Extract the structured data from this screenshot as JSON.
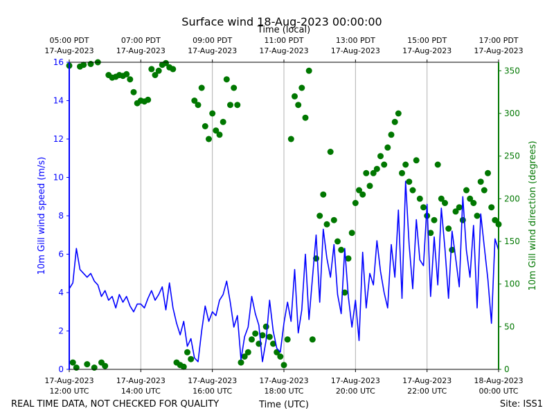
{
  "chart_data": {
    "type": "line+scatter",
    "title": "Surface wind 18-Aug-2023 00:00:00",
    "top_axis_label": "Time (local)",
    "xlabel": "Time (UTC)",
    "ylabel_left": "10m Gill wind speed (m/s)",
    "ylabel_right": "10m Gill wind direction (degrees)",
    "footer_left": "REAL TIME DATA, NOT CHECKED FOR QUALITY",
    "footer_right": "Site: ISS1",
    "x_range_hours_utc": [
      12,
      24
    ],
    "y_left_range": [
      0,
      16
    ],
    "y_right_range": [
      0,
      360
    ],
    "y_left_ticks": [
      0,
      2,
      4,
      6,
      8,
      10,
      12,
      14,
      16
    ],
    "y_right_ticks": [
      0,
      50,
      100,
      150,
      200,
      250,
      300,
      350
    ],
    "grid": "vertical",
    "colors": {
      "speed": "#0000ff",
      "direction": "#007700",
      "grid": "#b0b0b0",
      "axis": "#000000"
    },
    "bottom_ticks": [
      {
        "hour": 12,
        "line1": "17-Aug-2023",
        "line2": "12:00 UTC"
      },
      {
        "hour": 14,
        "line1": "17-Aug-2023",
        "line2": "14:00 UTC"
      },
      {
        "hour": 16,
        "line1": "17-Aug-2023",
        "line2": "16:00 UTC"
      },
      {
        "hour": 18,
        "line1": "17-Aug-2023",
        "line2": "18:00 UTC"
      },
      {
        "hour": 20,
        "line1": "17-Aug-2023",
        "line2": "20:00 UTC"
      },
      {
        "hour": 22,
        "line1": "17-Aug-2023",
        "line2": "22:00 UTC"
      },
      {
        "hour": 24,
        "line1": "18-Aug-2023",
        "line2": "00:00 UTC"
      }
    ],
    "top_ticks": [
      {
        "hour": 12,
        "line1": "05:00 PDT",
        "line2": "17-Aug-2023"
      },
      {
        "hour": 14,
        "line1": "07:00 PDT",
        "line2": "17-Aug-2023"
      },
      {
        "hour": 16,
        "line1": "09:00 PDT",
        "line2": "17-Aug-2023"
      },
      {
        "hour": 18,
        "line1": "11:00 PDT",
        "line2": "17-Aug-2023"
      },
      {
        "hour": 20,
        "line1": "13:00 PDT",
        "line2": "17-Aug-2023"
      },
      {
        "hour": 22,
        "line1": "15:00 PDT",
        "line2": "17-Aug-2023"
      },
      {
        "hour": 24,
        "line1": "17:00 PDT",
        "line2": "17-Aug-2023"
      }
    ],
    "series": [
      {
        "name": "wind speed",
        "axis": "left",
        "style": "line",
        "x": [
          12.0,
          12.1,
          12.2,
          12.3,
          12.4,
          12.5,
          12.6,
          12.7,
          12.8,
          12.9,
          13.0,
          13.1,
          13.2,
          13.3,
          13.4,
          13.5,
          13.6,
          13.7,
          13.8,
          13.9,
          14.0,
          14.1,
          14.2,
          14.3,
          14.4,
          14.5,
          14.6,
          14.7,
          14.8,
          14.9,
          15.0,
          15.1,
          15.2,
          15.3,
          15.4,
          15.5,
          15.6,
          15.7,
          15.8,
          15.9,
          16.0,
          16.1,
          16.2,
          16.3,
          16.4,
          16.5,
          16.6,
          16.7,
          16.8,
          16.9,
          17.0,
          17.1,
          17.2,
          17.3,
          17.4,
          17.5,
          17.6,
          17.7,
          17.8,
          17.9,
          18.0,
          18.1,
          18.2,
          18.3,
          18.4,
          18.5,
          18.6,
          18.7,
          18.8,
          18.9,
          19.0,
          19.1,
          19.2,
          19.3,
          19.4,
          19.5,
          19.6,
          19.7,
          19.8,
          19.9,
          20.0,
          20.1,
          20.2,
          20.3,
          20.4,
          20.5,
          20.6,
          20.7,
          20.8,
          20.9,
          21.0,
          21.1,
          21.2,
          21.3,
          21.4,
          21.5,
          21.6,
          21.7,
          21.8,
          21.9,
          22.0,
          22.1,
          22.2,
          22.3,
          22.4,
          22.5,
          22.6,
          22.7,
          22.8,
          22.9,
          23.0,
          23.1,
          23.2,
          23.3,
          23.4,
          23.5,
          23.6,
          23.7,
          23.8,
          23.9,
          24.0
        ],
        "values": [
          4.2,
          4.5,
          6.3,
          5.2,
          5.0,
          4.8,
          5.0,
          4.6,
          4.4,
          3.8,
          4.1,
          3.6,
          3.8,
          3.2,
          3.9,
          3.5,
          3.8,
          3.3,
          3.0,
          3.4,
          3.4,
          3.2,
          3.7,
          4.1,
          3.6,
          3.9,
          4.3,
          3.1,
          4.5,
          3.2,
          2.4,
          1.8,
          2.5,
          1.2,
          1.6,
          0.6,
          0.4,
          2.0,
          3.3,
          2.5,
          3.0,
          2.8,
          3.6,
          3.9,
          4.6,
          3.5,
          2.2,
          2.8,
          0.5,
          1.7,
          2.2,
          3.8,
          2.9,
          2.3,
          0.4,
          1.5,
          3.6,
          2.0,
          1.1,
          0.9,
          2.4,
          3.5,
          2.5,
          5.2,
          1.9,
          3.1,
          6.0,
          2.6,
          4.8,
          7.0,
          3.5,
          7.3,
          5.8,
          4.8,
          6.5,
          3.9,
          2.9,
          6.3,
          3.8,
          2.2,
          3.6,
          1.5,
          6.1,
          3.2,
          5.0,
          4.4,
          6.7,
          5.1,
          4.0,
          3.2,
          6.5,
          4.8,
          8.3,
          3.7,
          9.8,
          6.5,
          4.2,
          7.8,
          5.7,
          5.4,
          8.6,
          3.8,
          6.9,
          4.4,
          8.4,
          6.3,
          3.7,
          7.2,
          5.8,
          4.3,
          9.0,
          6.2,
          4.8,
          7.5,
          3.2,
          8.1,
          6.4,
          4.7,
          2.4,
          6.8,
          6.2
        ]
      },
      {
        "name": "wind direction",
        "axis": "right",
        "style": "scatter",
        "x": [
          12.0,
          12.1,
          12.2,
          12.3,
          12.4,
          12.5,
          12.6,
          12.7,
          12.8,
          12.9,
          13.0,
          13.1,
          13.2,
          13.3,
          13.4,
          13.5,
          13.6,
          13.7,
          13.8,
          13.9,
          14.0,
          14.1,
          14.2,
          14.3,
          14.4,
          14.5,
          14.6,
          14.7,
          14.8,
          14.9,
          15.0,
          15.1,
          15.2,
          15.3,
          15.4,
          15.5,
          15.6,
          15.7,
          15.8,
          15.9,
          16.0,
          16.1,
          16.2,
          16.3,
          16.4,
          16.5,
          16.6,
          16.7,
          16.8,
          16.9,
          17.0,
          17.1,
          17.2,
          17.3,
          17.4,
          17.5,
          17.6,
          17.7,
          17.8,
          17.9,
          18.0,
          18.1,
          18.2,
          18.3,
          18.4,
          18.5,
          18.6,
          18.7,
          18.8,
          18.9,
          19.0,
          19.1,
          19.2,
          19.3,
          19.4,
          19.5,
          19.6,
          19.7,
          19.8,
          19.9,
          20.0,
          20.1,
          20.2,
          20.3,
          20.4,
          20.5,
          20.6,
          20.7,
          20.8,
          20.9,
          21.0,
          21.1,
          21.2,
          21.3,
          21.4,
          21.5,
          21.6,
          21.7,
          21.8,
          21.9,
          22.0,
          22.1,
          22.2,
          22.3,
          22.4,
          22.5,
          22.6,
          22.7,
          22.8,
          22.9,
          23.0,
          23.1,
          23.2,
          23.3,
          23.4,
          23.5,
          23.6,
          23.7,
          23.8,
          23.9,
          24.0
        ],
        "values": [
          356,
          8,
          2,
          355,
          357,
          6,
          358,
          2,
          360,
          8,
          4,
          345,
          342,
          343,
          345,
          344,
          346,
          340,
          325,
          312,
          315,
          314,
          316,
          352,
          345,
          350,
          357,
          359,
          354,
          352,
          8,
          5,
          3,
          20,
          12,
          315,
          310,
          330,
          285,
          270,
          300,
          280,
          275,
          290,
          340,
          310,
          330,
          310,
          8,
          15,
          20,
          35,
          42,
          30,
          40,
          50,
          38,
          30,
          20,
          15,
          5,
          35,
          270,
          320,
          310,
          330,
          295,
          350,
          35,
          130,
          180,
          205,
          170,
          255,
          175,
          150,
          140,
          90,
          130,
          160,
          195,
          210,
          205,
          230,
          215,
          230,
          235,
          250,
          240,
          260,
          275,
          290,
          300,
          230,
          240,
          220,
          210,
          245,
          200,
          190,
          180,
          160,
          175,
          240,
          200,
          195,
          165,
          140,
          185,
          190,
          175,
          210,
          200,
          195,
          180,
          220,
          210,
          230,
          190,
          175,
          170
        ]
      }
    ]
  }
}
